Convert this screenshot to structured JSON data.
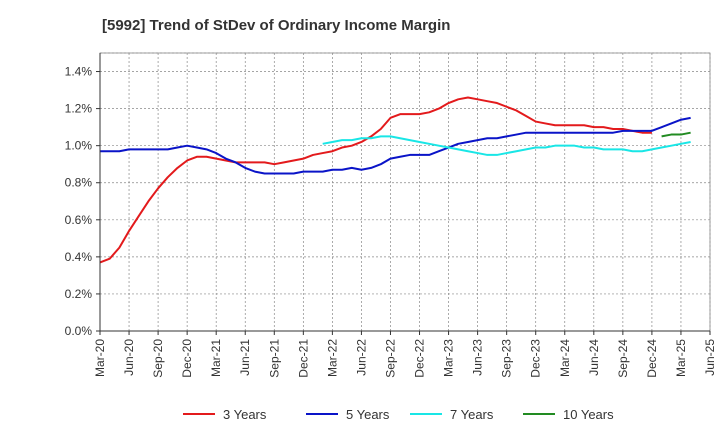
{
  "chart_data": {
    "type": "line",
    "title": "[5992]  Trend of StDev of Ordinary Income Margin",
    "xlabel": "",
    "ylabel": "",
    "ylim": [
      0,
      1.5
    ],
    "y_ticks": [
      0,
      0.2,
      0.4,
      0.6,
      0.8,
      1.0,
      1.2,
      1.4
    ],
    "y_tick_labels": [
      "0.0%",
      "0.2%",
      "0.4%",
      "0.6%",
      "0.8%",
      "1.0%",
      "1.2%",
      "1.4%"
    ],
    "x_ticks": [
      "2020-03",
      "2020-06",
      "2020-09",
      "2020-12",
      "2021-03",
      "2021-06",
      "2021-09",
      "2021-12",
      "2022-03",
      "2022-06",
      "2022-09",
      "2022-12",
      "2023-03",
      "2023-06",
      "2023-09",
      "2023-12",
      "2024-03",
      "2024-06",
      "2024-09",
      "2024-12",
      "2025-03",
      "2025-06"
    ],
    "x_tick_labels": [
      "Mar-20",
      "Jun-20",
      "Sep-20",
      "Dec-20",
      "Mar-21",
      "Jun-21",
      "Sep-21",
      "Dec-21",
      "Mar-22",
      "Jun-22",
      "Sep-22",
      "Dec-22",
      "Mar-23",
      "Jun-23",
      "Sep-23",
      "Dec-23",
      "Mar-24",
      "Jun-24",
      "Sep-24",
      "Dec-24",
      "Mar-25",
      "Jun-25"
    ],
    "grid": true,
    "legend_position": "bottom",
    "series": [
      {
        "name": "3 Years",
        "color": "#e31a1c",
        "points": [
          [
            "2020-03",
            0.37
          ],
          [
            "2020-04",
            0.39
          ],
          [
            "2020-05",
            0.45
          ],
          [
            "2020-06",
            0.54
          ],
          [
            "2020-07",
            0.62
          ],
          [
            "2020-08",
            0.7
          ],
          [
            "2020-09",
            0.77
          ],
          [
            "2020-10",
            0.83
          ],
          [
            "2020-11",
            0.88
          ],
          [
            "2020-12",
            0.92
          ],
          [
            "2021-01",
            0.94
          ],
          [
            "2021-02",
            0.94
          ],
          [
            "2021-03",
            0.93
          ],
          [
            "2021-04",
            0.92
          ],
          [
            "2021-05",
            0.91
          ],
          [
            "2021-06",
            0.91
          ],
          [
            "2021-07",
            0.91
          ],
          [
            "2021-08",
            0.91
          ],
          [
            "2021-09",
            0.9
          ],
          [
            "2021-10",
            0.91
          ],
          [
            "2021-11",
            0.92
          ],
          [
            "2021-12",
            0.93
          ],
          [
            "2022-01",
            0.95
          ],
          [
            "2022-02",
            0.96
          ],
          [
            "2022-03",
            0.97
          ],
          [
            "2022-04",
            0.99
          ],
          [
            "2022-05",
            1.0
          ],
          [
            "2022-06",
            1.02
          ],
          [
            "2022-07",
            1.05
          ],
          [
            "2022-08",
            1.09
          ],
          [
            "2022-09",
            1.15
          ],
          [
            "2022-10",
            1.17
          ],
          [
            "2022-11",
            1.17
          ],
          [
            "2022-12",
            1.17
          ],
          [
            "2023-01",
            1.18
          ],
          [
            "2023-02",
            1.2
          ],
          [
            "2023-03",
            1.23
          ],
          [
            "2023-04",
            1.25
          ],
          [
            "2023-05",
            1.26
          ],
          [
            "2023-06",
            1.25
          ],
          [
            "2023-07",
            1.24
          ],
          [
            "2023-08",
            1.23
          ],
          [
            "2023-09",
            1.21
          ],
          [
            "2023-10",
            1.19
          ],
          [
            "2023-11",
            1.16
          ],
          [
            "2023-12",
            1.13
          ],
          [
            "2024-01",
            1.12
          ],
          [
            "2024-02",
            1.11
          ],
          [
            "2024-03",
            1.11
          ],
          [
            "2024-04",
            1.11
          ],
          [
            "2024-05",
            1.11
          ],
          [
            "2024-06",
            1.1
          ],
          [
            "2024-07",
            1.1
          ],
          [
            "2024-08",
            1.09
          ],
          [
            "2024-09",
            1.09
          ],
          [
            "2024-10",
            1.08
          ],
          [
            "2024-11",
            1.07
          ],
          [
            "2024-12",
            1.07
          ]
        ]
      },
      {
        "name": "5 Years",
        "color": "#0a14c8",
        "points": [
          [
            "2020-03",
            0.97
          ],
          [
            "2020-04",
            0.97
          ],
          [
            "2020-05",
            0.97
          ],
          [
            "2020-06",
            0.98
          ],
          [
            "2020-07",
            0.98
          ],
          [
            "2020-08",
            0.98
          ],
          [
            "2020-09",
            0.98
          ],
          [
            "2020-10",
            0.98
          ],
          [
            "2020-11",
            0.99
          ],
          [
            "2020-12",
            1.0
          ],
          [
            "2021-01",
            0.99
          ],
          [
            "2021-02",
            0.98
          ],
          [
            "2021-03",
            0.96
          ],
          [
            "2021-04",
            0.93
          ],
          [
            "2021-05",
            0.91
          ],
          [
            "2021-06",
            0.88
          ],
          [
            "2021-07",
            0.86
          ],
          [
            "2021-08",
            0.85
          ],
          [
            "2021-09",
            0.85
          ],
          [
            "2021-10",
            0.85
          ],
          [
            "2021-11",
            0.85
          ],
          [
            "2021-12",
            0.86
          ],
          [
            "2022-01",
            0.86
          ],
          [
            "2022-02",
            0.86
          ],
          [
            "2022-03",
            0.87
          ],
          [
            "2022-04",
            0.87
          ],
          [
            "2022-05",
            0.88
          ],
          [
            "2022-06",
            0.87
          ],
          [
            "2022-07",
            0.88
          ],
          [
            "2022-08",
            0.9
          ],
          [
            "2022-09",
            0.93
          ],
          [
            "2022-10",
            0.94
          ],
          [
            "2022-11",
            0.95
          ],
          [
            "2022-12",
            0.95
          ],
          [
            "2023-01",
            0.95
          ],
          [
            "2023-02",
            0.97
          ],
          [
            "2023-03",
            0.99
          ],
          [
            "2023-04",
            1.01
          ],
          [
            "2023-05",
            1.02
          ],
          [
            "2023-06",
            1.03
          ],
          [
            "2023-07",
            1.04
          ],
          [
            "2023-08",
            1.04
          ],
          [
            "2023-09",
            1.05
          ],
          [
            "2023-10",
            1.06
          ],
          [
            "2023-11",
            1.07
          ],
          [
            "2023-12",
            1.07
          ],
          [
            "2024-01",
            1.07
          ],
          [
            "2024-02",
            1.07
          ],
          [
            "2024-03",
            1.07
          ],
          [
            "2024-04",
            1.07
          ],
          [
            "2024-05",
            1.07
          ],
          [
            "2024-06",
            1.07
          ],
          [
            "2024-07",
            1.07
          ],
          [
            "2024-08",
            1.07
          ],
          [
            "2024-09",
            1.08
          ],
          [
            "2024-10",
            1.08
          ],
          [
            "2024-11",
            1.08
          ],
          [
            "2024-12",
            1.08
          ],
          [
            "2025-01",
            1.1
          ],
          [
            "2025-02",
            1.12
          ],
          [
            "2025-03",
            1.14
          ],
          [
            "2025-04",
            1.15
          ]
        ]
      },
      {
        "name": "7 Years",
        "color": "#19e6e6",
        "points": [
          [
            "2022-02",
            1.01
          ],
          [
            "2022-03",
            1.02
          ],
          [
            "2022-04",
            1.03
          ],
          [
            "2022-05",
            1.03
          ],
          [
            "2022-06",
            1.04
          ],
          [
            "2022-07",
            1.04
          ],
          [
            "2022-08",
            1.05
          ],
          [
            "2022-09",
            1.05
          ],
          [
            "2022-10",
            1.04
          ],
          [
            "2022-11",
            1.03
          ],
          [
            "2022-12",
            1.02
          ],
          [
            "2023-01",
            1.01
          ],
          [
            "2023-02",
            1.0
          ],
          [
            "2023-03",
            0.99
          ],
          [
            "2023-04",
            0.98
          ],
          [
            "2023-05",
            0.97
          ],
          [
            "2023-06",
            0.96
          ],
          [
            "2023-07",
            0.95
          ],
          [
            "2023-08",
            0.95
          ],
          [
            "2023-09",
            0.96
          ],
          [
            "2023-10",
            0.97
          ],
          [
            "2023-11",
            0.98
          ],
          [
            "2023-12",
            0.99
          ],
          [
            "2024-01",
            0.99
          ],
          [
            "2024-02",
            1.0
          ],
          [
            "2024-03",
            1.0
          ],
          [
            "2024-04",
            1.0
          ],
          [
            "2024-05",
            0.99
          ],
          [
            "2024-06",
            0.99
          ],
          [
            "2024-07",
            0.98
          ],
          [
            "2024-08",
            0.98
          ],
          [
            "2024-09",
            0.98
          ],
          [
            "2024-10",
            0.97
          ],
          [
            "2024-11",
            0.97
          ],
          [
            "2024-12",
            0.98
          ],
          [
            "2025-01",
            0.99
          ],
          [
            "2025-02",
            1.0
          ],
          [
            "2025-03",
            1.01
          ],
          [
            "2025-04",
            1.02
          ]
        ]
      },
      {
        "name": "10 Years",
        "color": "#228b22",
        "points": [
          [
            "2025-01",
            1.05
          ],
          [
            "2025-02",
            1.06
          ],
          [
            "2025-03",
            1.06
          ],
          [
            "2025-04",
            1.07
          ]
        ]
      }
    ]
  }
}
